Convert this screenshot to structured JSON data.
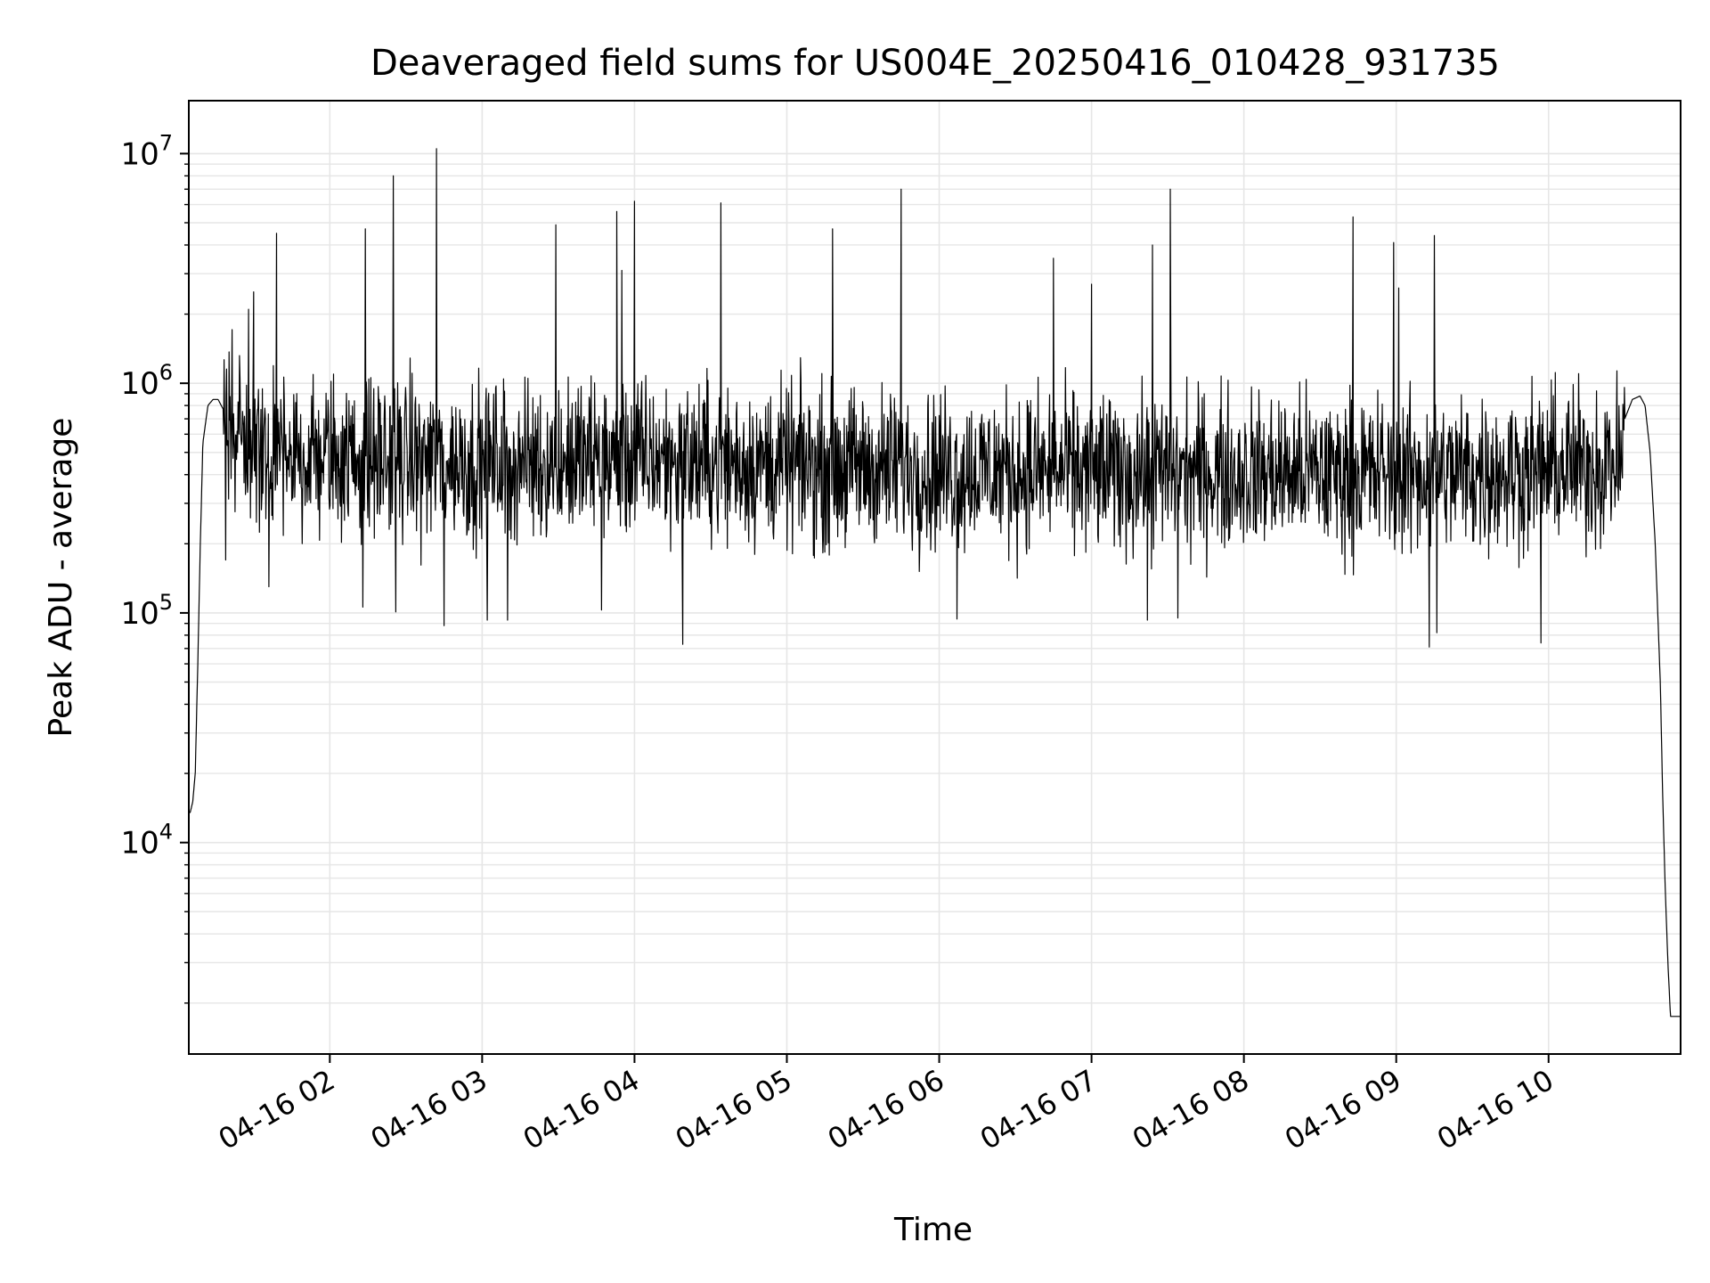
{
  "chart_data": {
    "type": "line",
    "title": "Deaveraged field sums for US004E_20250416_010428_931735",
    "xlabel": "Time",
    "ylabel": "Peak ADU - average",
    "yscale": "log",
    "grid": true,
    "grid_minor": true,
    "line_color": "#000000",
    "grid_color": "#e6e6e6",
    "x_range": [
      "2025-04-16 01:04:28",
      "2025-04-16 10:52:00"
    ],
    "y_range": [
      1200,
      17000000
    ],
    "x_ticks": [
      {
        "value": "2025-04-16 02:00",
        "label": "04-16 02"
      },
      {
        "value": "2025-04-16 03:00",
        "label": "04-16 03"
      },
      {
        "value": "2025-04-16 04:00",
        "label": "04-16 04"
      },
      {
        "value": "2025-04-16 05:00",
        "label": "04-16 05"
      },
      {
        "value": "2025-04-16 06:00",
        "label": "04-16 06"
      },
      {
        "value": "2025-04-16 07:00",
        "label": "04-16 07"
      },
      {
        "value": "2025-04-16 08:00",
        "label": "04-16 08"
      },
      {
        "value": "2025-04-16 09:00",
        "label": "04-16 09"
      },
      {
        "value": "2025-04-16 10:00",
        "label": "04-16 10"
      }
    ],
    "y_ticks": [
      {
        "value": 10000,
        "base": "10",
        "exp": "4"
      },
      {
        "value": 100000,
        "base": "10",
        "exp": "5"
      },
      {
        "value": 1000000,
        "base": "10",
        "exp": "6"
      },
      {
        "value": 10000000,
        "base": "10",
        "exp": "7"
      }
    ],
    "series": [
      {
        "profile": [
          [
            "2025-04-16 01:04:28",
            13500
          ],
          [
            "2025-04-16 01:05:00",
            13500
          ],
          [
            "2025-04-16 01:06:00",
            15000
          ],
          [
            "2025-04-16 01:07:00",
            20000
          ],
          [
            "2025-04-16 01:08:00",
            60000
          ],
          [
            "2025-04-16 01:09:00",
            200000
          ],
          [
            "2025-04-16 01:10:00",
            550000
          ],
          [
            "2025-04-16 01:12:00",
            800000
          ],
          [
            "2025-04-16 01:14:00",
            850000
          ],
          [
            "2025-04-16 01:16:00",
            850000
          ],
          [
            "2025-04-16 01:20:00",
            700000
          ],
          [
            "2025-04-16 01:25:00",
            500000
          ],
          [
            "2025-04-16 02:00:00",
            480000
          ],
          [
            "2025-04-16 03:00:00",
            450000
          ],
          [
            "2025-04-16 04:00:00",
            470000
          ],
          [
            "2025-04-16 05:00:00",
            440000
          ],
          [
            "2025-04-16 06:00:00",
            420000
          ],
          [
            "2025-04-16 07:00:00",
            410000
          ],
          [
            "2025-04-16 08:00:00",
            410000
          ],
          [
            "2025-04-16 09:00:00",
            400000
          ],
          [
            "2025-04-16 10:00:00",
            420000
          ],
          [
            "2025-04-16 10:28:00",
            450000
          ],
          [
            "2025-04-16 10:30:00",
            700000
          ],
          [
            "2025-04-16 10:33:00",
            850000
          ],
          [
            "2025-04-16 10:36:00",
            880000
          ],
          [
            "2025-04-16 10:38:00",
            800000
          ],
          [
            "2025-04-16 10:40:00",
            500000
          ],
          [
            "2025-04-16 10:42:00",
            200000
          ],
          [
            "2025-04-16 10:44:00",
            50000
          ],
          [
            "2025-04-16 10:45:00",
            15000
          ],
          [
            "2025-04-16 10:46:00",
            6000
          ],
          [
            "2025-04-16 10:47:00",
            3000
          ],
          [
            "2025-04-16 10:48:00",
            1750
          ],
          [
            "2025-04-16 10:52:00",
            1750
          ]
        ],
        "noisy_range": [
          "2025-04-16 01:18:00",
          "2025-04-16 10:30:00"
        ],
        "spikes_high": [
          [
            "2025-04-16 01:39:00",
            4500000
          ],
          [
            "2025-04-16 02:14:00",
            4700000
          ],
          [
            "2025-04-16 02:25:00",
            8000000
          ],
          [
            "2025-04-16 02:42:00",
            10500000
          ],
          [
            "2025-04-16 03:29:00",
            4900000
          ],
          [
            "2025-04-16 03:53:00",
            5600000
          ],
          [
            "2025-04-16 03:55:00",
            3100000
          ],
          [
            "2025-04-16 04:00:00",
            6200000
          ],
          [
            "2025-04-16 04:34:00",
            6100000
          ],
          [
            "2025-04-16 05:18:00",
            4700000
          ],
          [
            "2025-04-16 05:45:00",
            7000000
          ],
          [
            "2025-04-16 06:45:00",
            3500000
          ],
          [
            "2025-04-16 07:00:00",
            2700000
          ],
          [
            "2025-04-16 07:24:00",
            4000000
          ],
          [
            "2025-04-16 07:31:00",
            7000000
          ],
          [
            "2025-04-16 08:43:00",
            5300000
          ],
          [
            "2025-04-16 08:59:00",
            4100000
          ],
          [
            "2025-04-16 09:01:00",
            2600000
          ],
          [
            "2025-04-16 09:15:00",
            4400000
          ],
          [
            "2025-04-16 01:30:00",
            2500000
          ],
          [
            "2025-04-16 01:28:00",
            2100000
          ]
        ],
        "spikes_low": [
          [
            "2025-04-16 01:19:00",
            170000
          ],
          [
            "2025-04-16 01:36:00",
            130000
          ],
          [
            "2025-04-16 02:13:00",
            106000
          ],
          [
            "2025-04-16 02:26:00",
            101000
          ],
          [
            "2025-04-16 02:45:00",
            88000
          ],
          [
            "2025-04-16 03:02:00",
            93000
          ],
          [
            "2025-04-16 03:10:00",
            93000
          ],
          [
            "2025-04-16 03:47:00",
            103000
          ],
          [
            "2025-04-16 04:19:00",
            73000
          ],
          [
            "2025-04-16 06:07:00",
            94000
          ],
          [
            "2025-04-16 07:22:00",
            93000
          ],
          [
            "2025-04-16 07:34:00",
            95000
          ],
          [
            "2025-04-16 09:13:00",
            71000
          ],
          [
            "2025-04-16 09:16:00",
            82000
          ],
          [
            "2025-04-16 09:57:00",
            74000
          ]
        ]
      }
    ]
  }
}
